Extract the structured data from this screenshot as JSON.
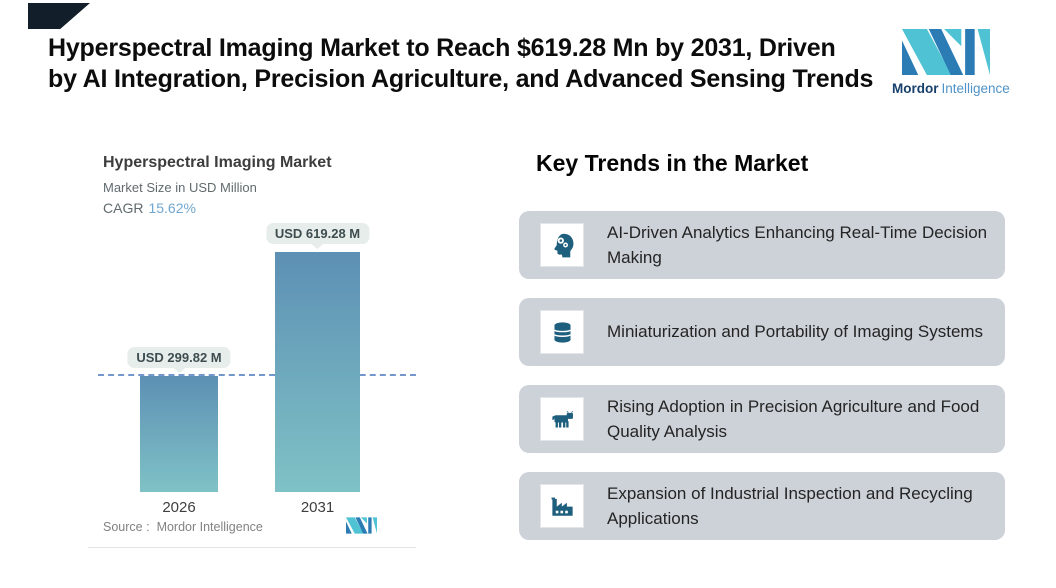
{
  "header": {
    "title_line1": "Hyperspectral Imaging Market to Reach $619.28 Mn by 2031, Driven",
    "title_line2": "by AI Integration, Precision Agriculture, and Advanced Sensing Trends"
  },
  "brand": {
    "name_bold": "Mordor",
    "name_light": "Intelligence",
    "teal": "#4fc3d4",
    "blue": "#2b7cb5"
  },
  "chart": {
    "title": "Hyperspectral Imaging Market",
    "subtitle": "Market Size in USD Million",
    "cagr_label": "CAGR",
    "cagr_value": "15.62%",
    "source_label": "Source :",
    "source_value": "Mordor Intelligence",
    "cagr_color": "#72a7cf",
    "dash_color": "#7397cd"
  },
  "chart_data": {
    "type": "bar",
    "categories": [
      "2026",
      "2031"
    ],
    "values": [
      299.82,
      619.28
    ],
    "value_labels": [
      "USD 299.82 M",
      "USD 619.28 M"
    ],
    "title": "Hyperspectral Imaging Market",
    "ylabel": "Market Size in USD Million",
    "annotations": [
      "CAGR 15.62%",
      "dashed reference line at 2026 value of 299.82"
    ],
    "ylim": [
      0,
      650
    ],
    "grid": false,
    "legend": false,
    "bar_gradient": [
      "#5d90b4",
      "#7fc2c6"
    ]
  },
  "trends": {
    "heading": "Key Trends in the Market",
    "card_bg": "#cdd2d9",
    "icon_color": "#1e5f7d",
    "cards": [
      {
        "icon": "ai-head-icon",
        "text": "AI-Driven Analytics Enhancing Real-Time Decision Making"
      },
      {
        "icon": "database-icon",
        "text": "Miniaturization and Portability of Imaging Systems"
      },
      {
        "icon": "cow-icon",
        "text": "Rising Adoption in Precision Agriculture and Food Quality Analysis"
      },
      {
        "icon": "factory-icon",
        "text": "Expansion of Industrial Inspection and Recycling Applications"
      }
    ]
  }
}
